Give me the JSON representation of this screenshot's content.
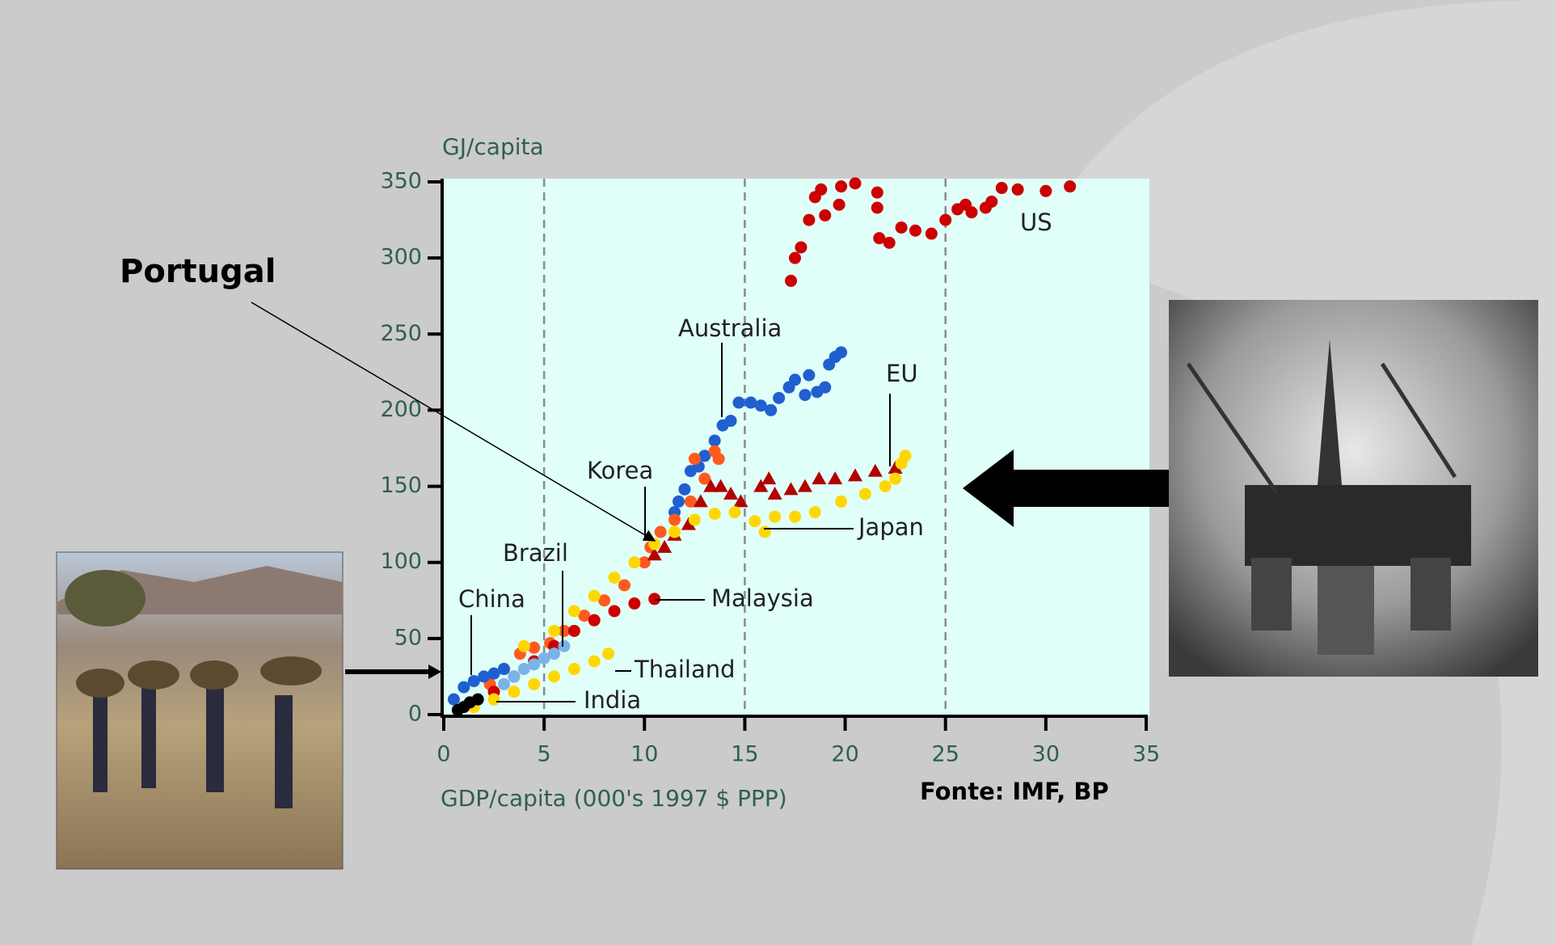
{
  "chart_data": {
    "type": "scatter",
    "y_label": "GJ/capita",
    "x_label": "GDP/capita (000's 1997 $ PPP)",
    "source": "Fonte: IMF, BP",
    "callout": "Portugal",
    "xlim": [
      0,
      35
    ],
    "ylim": [
      0,
      350
    ],
    "xticks": [
      0,
      5,
      10,
      15,
      20,
      25,
      30,
      35
    ],
    "yticks": [
      0,
      50,
      100,
      150,
      200,
      250,
      300,
      350
    ],
    "xgrid": [
      5,
      15,
      25
    ],
    "series": [
      {
        "name": "US",
        "color": "#cc0000",
        "marker": "circle",
        "x": [
          17.3,
          17.5,
          17.8,
          18.2,
          18.5,
          18.8,
          19,
          19.7,
          19.8,
          20.5,
          21.6,
          21.6,
          21.7,
          22.2,
          22.8,
          23.5,
          24.3,
          25,
          25.6,
          26,
          26.3,
          27,
          27.3,
          27.8,
          28.6,
          30,
          31.2
        ],
        "values": [
          285,
          300,
          307,
          325,
          340,
          345,
          328,
          335,
          347,
          349,
          343,
          333,
          313,
          310,
          320,
          318,
          316,
          325,
          332,
          335,
          330,
          333,
          337,
          346,
          345,
          344,
          347
        ]
      },
      {
        "name": "Australia",
        "color": "#1f5fd0",
        "marker": "circle",
        "x": [
          11.5,
          11.7,
          12,
          12.3,
          12.7,
          13,
          13.5,
          13.9,
          14.3,
          14.7,
          15.3,
          15.8,
          16.3,
          16.7,
          17.2,
          17.5,
          18,
          18.2,
          18.6,
          19,
          19.2,
          19.5,
          19.8
        ],
        "values": [
          133,
          140,
          148,
          160,
          163,
          170,
          180,
          190,
          193,
          205,
          205,
          203,
          200,
          208,
          215,
          220,
          210,
          223,
          212,
          215,
          230,
          235,
          238
        ]
      },
      {
        "name": "Korea",
        "color": "#ff5a1e",
        "marker": "circle",
        "x": [
          2.3,
          3,
          3.8,
          4.5,
          5.3,
          6,
          7,
          8,
          9,
          10,
          10.3,
          10.8,
          11.5,
          12.3,
          12.5,
          13,
          13.5,
          13.7
        ],
        "values": [
          20,
          30,
          40,
          44,
          47,
          55,
          65,
          75,
          85,
          100,
          110,
          120,
          128,
          140,
          168,
          155,
          173,
          168
        ]
      },
      {
        "name": "EU",
        "color": "#b30000",
        "marker": "triangle",
        "x": [
          10.5,
          11,
          11.5,
          12.2,
          12.8,
          13.3,
          13.8,
          14.3,
          14.8,
          15.8,
          16.2,
          16.5,
          17.3,
          18,
          18.7,
          19.5,
          20.5,
          21.5,
          22.5
        ],
        "values": [
          105,
          110,
          118,
          125,
          140,
          150,
          150,
          145,
          140,
          150,
          155,
          145,
          148,
          150,
          155,
          155,
          157,
          160,
          162
        ]
      },
      {
        "name": "Japan",
        "color": "#ffd700",
        "marker": "circle",
        "x": [
          4,
          5.5,
          6.5,
          7.5,
          8.5,
          9.5,
          10.5,
          11.5,
          12.5,
          13.5,
          14.5,
          15.5,
          16,
          16.5,
          17.5,
          18.5,
          19.8,
          21,
          22,
          22.5,
          22.8,
          23
        ],
        "values": [
          45,
          55,
          68,
          78,
          90,
          100,
          112,
          120,
          128,
          132,
          133,
          127,
          120,
          130,
          130,
          133,
          140,
          145,
          150,
          155,
          165,
          170
        ]
      },
      {
        "name": "Malaysia",
        "color": "#cc0000",
        "marker": "circle",
        "x": [
          2.5,
          3.5,
          4.5,
          5.5,
          6.5,
          7.5,
          8.5,
          9.5,
          10.5
        ],
        "values": [
          15,
          25,
          35,
          45,
          55,
          62,
          68,
          73,
          76
        ]
      },
      {
        "name": "China",
        "color": "#1f5fd0",
        "marker": "circle",
        "x": [
          0.5,
          1,
          1.5,
          2,
          2.5,
          3
        ],
        "values": [
          10,
          18,
          22,
          25,
          27,
          30
        ]
      },
      {
        "name": "Brazil",
        "color": "#7ab4e6",
        "marker": "circle",
        "x": [
          3,
          3.5,
          4,
          4.5,
          5,
          5.5,
          6
        ],
        "values": [
          20,
          25,
          30,
          33,
          37,
          40,
          45
        ]
      },
      {
        "name": "Thailand",
        "color": "#ffd700",
        "marker": "circle",
        "x": [
          1.5,
          2.5,
          3.5,
          4.5,
          5.5,
          6.5,
          7.5,
          8.2
        ],
        "values": [
          5,
          10,
          15,
          20,
          25,
          30,
          35,
          40
        ]
      },
      {
        "name": "India",
        "color": "#000000",
        "marker": "circle",
        "x": [
          0.7,
          1,
          1.3,
          1.7
        ],
        "values": [
          3,
          5,
          8,
          10
        ]
      }
    ]
  }
}
